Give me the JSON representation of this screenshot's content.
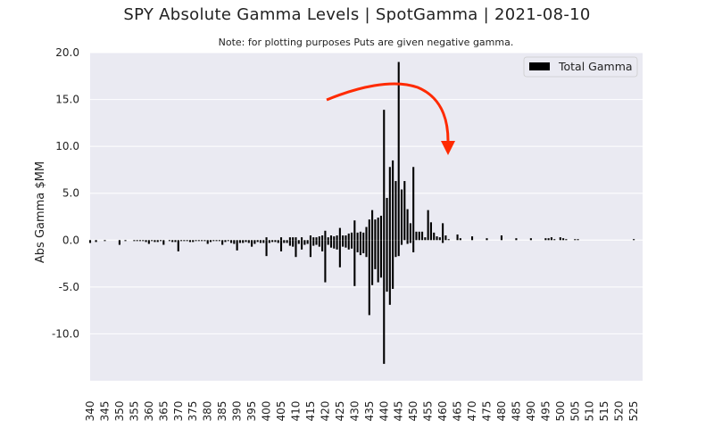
{
  "title": "SPY Absolute Gamma Levels | SpotGamma | 2021-08-10",
  "subtitle": "Note: for plotting purposes Puts are given negative gamma.",
  "colors": {
    "plot_background": "#eaeaf2",
    "grid": "#ffffff",
    "bar": "#000000",
    "arrow": "#ff2a00"
  },
  "chart_data": {
    "type": "bar",
    "title": "SPY Absolute Gamma Levels | SpotGamma | 2021-08-10",
    "subtitle": "Note: for plotting purposes Puts are given negative gamma.",
    "xlabel": "",
    "ylabel": "Abs Gamma $MM",
    "ylim": [
      -15,
      20
    ],
    "xlim": [
      340,
      528
    ],
    "grid": true,
    "legend": {
      "position": "top-right",
      "entries": [
        "Total Gamma"
      ]
    },
    "y_ticks": [
      "20.0",
      "15.0",
      "10.0",
      "5.0",
      "0.0",
      "-5.0",
      "-10.0"
    ],
    "y_tick_values": [
      20,
      15,
      10,
      5,
      0,
      -5,
      -10
    ],
    "x_ticks": [
      "340",
      "345",
      "350",
      "355",
      "360",
      "365",
      "370",
      "375",
      "380",
      "385",
      "390",
      "395",
      "400",
      "405",
      "410",
      "415",
      "420",
      "425",
      "430",
      "435",
      "440",
      "445",
      "450",
      "455",
      "460",
      "465",
      "470",
      "475",
      "480",
      "485",
      "490",
      "495",
      "500",
      "505",
      "510",
      "515",
      "520",
      "525"
    ],
    "series": [
      {
        "name": "Total Gamma",
        "x": [
          340,
          342,
          345,
          350,
          352,
          355,
          356,
          357,
          358,
          359,
          360,
          361,
          362,
          363,
          364,
          365,
          367,
          368,
          369,
          370,
          371,
          372,
          373,
          374,
          375,
          376,
          377,
          378,
          379,
          380,
          381,
          382,
          383,
          384,
          385,
          386,
          387,
          388,
          389,
          390,
          391,
          392,
          393,
          394,
          395,
          396,
          397,
          398,
          399,
          400,
          401,
          402,
          403,
          404,
          405,
          406,
          407,
          408,
          409,
          410,
          411,
          412,
          413,
          414,
          415,
          416,
          417,
          418,
          419,
          420,
          421,
          422,
          423,
          424,
          425,
          426,
          427,
          428,
          429,
          430,
          431,
          432,
          433,
          434,
          435,
          436,
          437,
          438,
          439,
          440,
          441,
          442,
          443,
          444,
          445,
          446,
          447,
          448,
          449,
          450,
          451,
          452,
          453,
          454,
          455,
          456,
          457,
          458,
          459,
          460,
          461,
          462,
          465,
          466,
          470,
          475,
          480,
          485,
          490,
          495,
          496,
          497,
          498,
          500,
          501,
          502,
          505,
          506,
          510,
          515,
          520,
          525
        ],
        "pos": [
          0,
          0,
          0,
          0,
          0,
          0,
          0,
          0,
          0,
          0,
          0,
          0,
          0,
          0,
          0,
          0,
          0,
          0,
          0,
          0,
          0,
          0,
          0,
          0,
          0,
          0,
          0,
          0,
          0,
          0,
          0,
          0,
          0,
          0,
          0,
          0,
          0,
          0,
          0,
          0,
          0,
          0,
          0,
          0,
          0,
          0,
          0,
          0,
          0,
          0.3,
          0,
          0,
          0,
          0,
          0.3,
          0,
          0,
          0.3,
          0.3,
          0.3,
          0,
          0.3,
          0,
          0,
          0.5,
          0.3,
          0.3,
          0.4,
          0.5,
          1.0,
          0.3,
          0.5,
          0.4,
          0.5,
          1.3,
          0.5,
          0.5,
          0.7,
          0.8,
          2.1,
          0.8,
          0.9,
          0.8,
          1.4,
          2.2,
          3.2,
          2.2,
          2.4,
          2.6,
          13.9,
          4.5,
          7.8,
          8.5,
          6.3,
          19.0,
          5.4,
          6.3,
          3.3,
          1.8,
          7.8,
          0.9,
          0.9,
          0.9,
          0.3,
          3.2,
          1.9,
          0.8,
          0.4,
          0.3,
          1.8,
          0.5,
          0.1,
          0.6,
          0.2,
          0.4,
          0.2,
          0.5,
          0.2,
          0.2,
          0.2,
          0.2,
          0.3,
          0.1,
          0.3,
          0.2,
          0.1,
          0.1,
          0.1,
          0,
          0,
          0,
          0.1
        ],
        "neg": [
          -0.3,
          -0.2,
          -0.1,
          -0.5,
          -0.1,
          -0.1,
          -0.1,
          -0.1,
          -0.1,
          -0.2,
          -0.4,
          -0.1,
          -0.2,
          -0.2,
          -0.1,
          -0.5,
          -0.1,
          -0.2,
          -0.2,
          -1.2,
          -0.1,
          -0.1,
          -0.1,
          -0.2,
          -0.2,
          -0.1,
          -0.1,
          -0.1,
          -0.1,
          -0.4,
          -0.2,
          -0.1,
          -0.1,
          -0.1,
          -0.5,
          -0.2,
          -0.1,
          -0.3,
          -0.4,
          -1.1,
          -0.3,
          -0.3,
          -0.2,
          -0.3,
          -0.7,
          -0.4,
          -0.2,
          -0.3,
          -0.3,
          -1.7,
          -0.3,
          -0.2,
          -0.2,
          -0.3,
          -1.2,
          -0.3,
          -0.3,
          -0.6,
          -0.7,
          -1.8,
          -0.4,
          -1.0,
          -0.5,
          -0.4,
          -1.8,
          -0.6,
          -0.5,
          -0.7,
          -1.2,
          -4.5,
          -0.5,
          -0.8,
          -0.9,
          -1.0,
          -2.9,
          -0.7,
          -0.8,
          -1.0,
          -0.9,
          -4.9,
          -1.3,
          -1.6,
          -1.4,
          -1.8,
          -8.0,
          -4.8,
          -3.1,
          -4.5,
          -4.0,
          -13.2,
          -5.5,
          -6.9,
          -5.2,
          -1.8,
          -1.7,
          -0.5,
          0,
          -0.4,
          -0.3,
          -1.3,
          0,
          0,
          0,
          0,
          0,
          0,
          0,
          0,
          0,
          -0.3,
          0,
          0,
          0,
          0,
          0,
          0,
          0,
          0,
          0,
          0,
          0,
          0,
          0,
          0,
          0,
          0,
          0,
          0,
          0,
          0,
          0,
          0
        ]
      }
    ]
  }
}
